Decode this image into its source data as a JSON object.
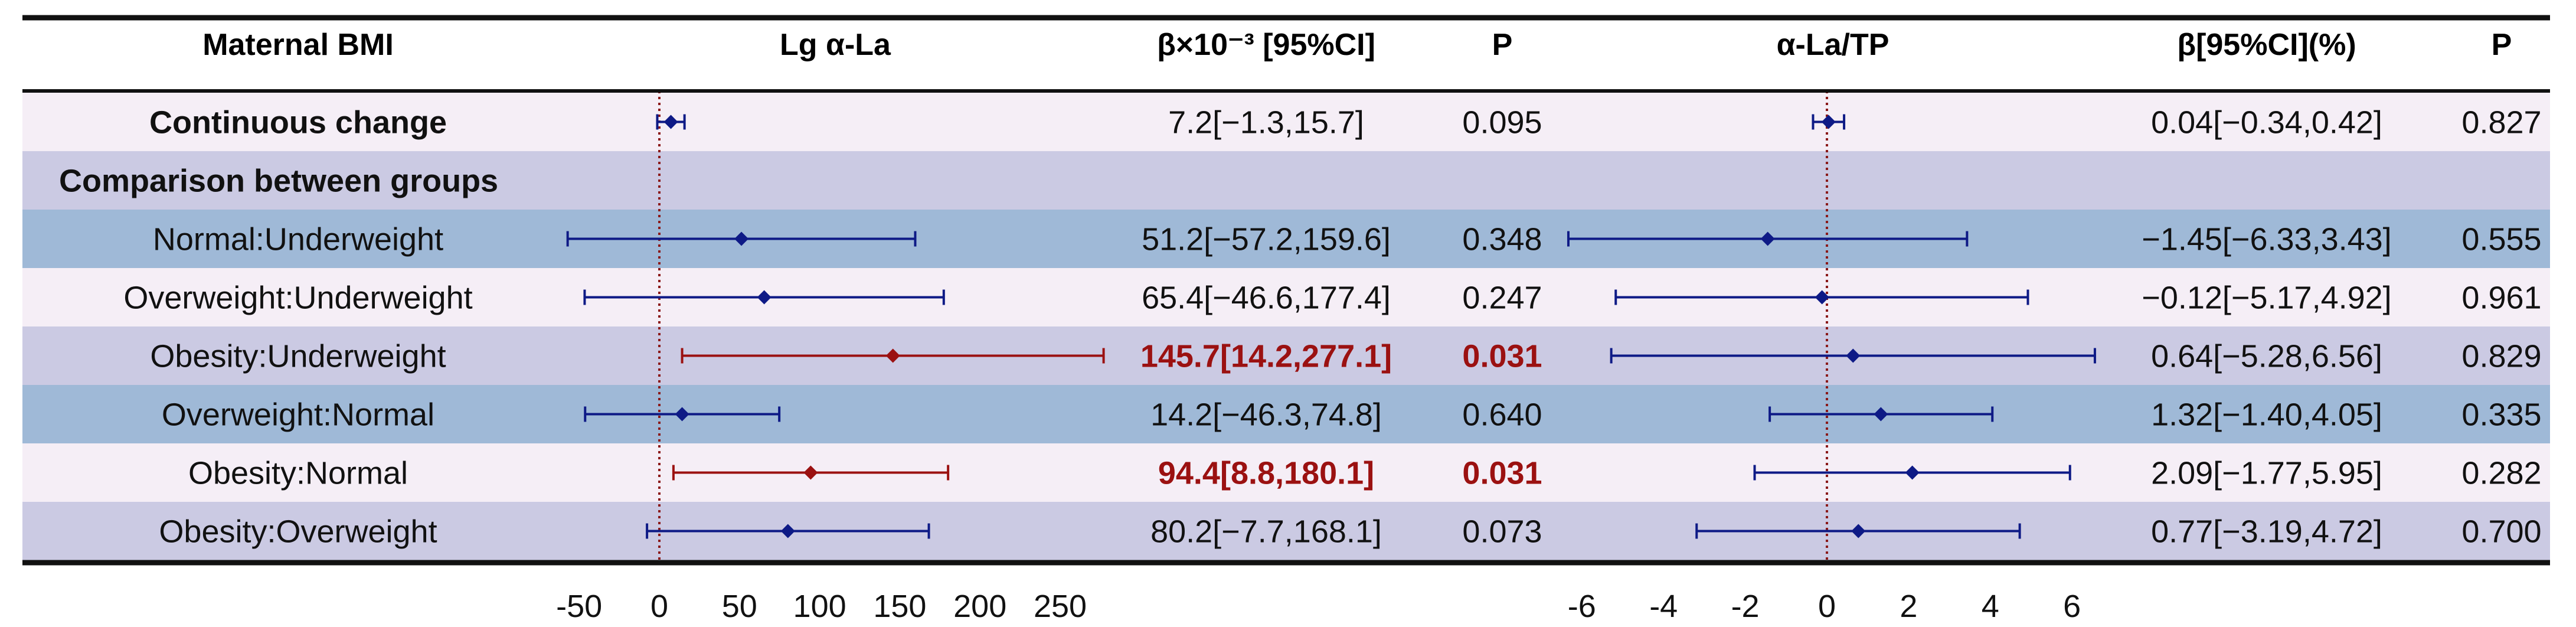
{
  "headers": {
    "group": "Maternal BMI",
    "left_plot": "Lg α-La",
    "left_ci": "β×10⁻³ [95%CI]",
    "left_p": "P",
    "right_plot": "α-La/TP",
    "right_ci": "β[95%CI](%)",
    "right_p": "P"
  },
  "colors": {
    "row_light": "#f5eef6",
    "row_mid": "#cbcae3",
    "row_dark": "#9fb9d7",
    "estimate": "#0e1a86",
    "significant": "#9b1111",
    "reference_line": "#8b1a1a",
    "rule": "#111111",
    "text": "#111111"
  },
  "chart_data": [
    {
      "type": "forest",
      "ylabel": "Maternal BMI",
      "xlabel": "Lg α-La",
      "xlim": [
        -55,
        275
      ],
      "xticks": [
        -50,
        0,
        50,
        100,
        150,
        200,
        250
      ],
      "reference_value": 0,
      "rows": [
        {
          "label": "Continuous change",
          "kind": "bold",
          "est": 7.2,
          "lo": -1.3,
          "hi": 15.7,
          "ci_text": "7.2[−1.3,15.7]",
          "p": "0.095",
          "significant": false
        },
        {
          "label": "Comparison between groups",
          "kind": "section"
        },
        {
          "label": "Normal:Underweight",
          "kind": "normal",
          "est": 51.2,
          "lo": -57.2,
          "hi": 159.6,
          "ci_text": "51.2[−57.2,159.6]",
          "p": "0.348",
          "significant": false
        },
        {
          "label": "Overweight:Underweight",
          "kind": "normal",
          "est": 65.4,
          "lo": -46.6,
          "hi": 177.4,
          "ci_text": "65.4[−46.6,177.4]",
          "p": "0.247",
          "significant": false
        },
        {
          "label": "Obesity:Underweight",
          "kind": "normal",
          "est": 145.7,
          "lo": 14.2,
          "hi": 277.1,
          "ci_text": "145.7[14.2,277.1]",
          "p": "0.031",
          "significant": true
        },
        {
          "label": "Overweight:Normal",
          "kind": "normal",
          "est": 14.2,
          "lo": -46.3,
          "hi": 74.8,
          "ci_text": "14.2[−46.3,74.8]",
          "p": "0.640",
          "significant": false
        },
        {
          "label": "Obesity:Normal",
          "kind": "normal",
          "est": 94.4,
          "lo": 8.8,
          "hi": 180.1,
          "ci_text": "94.4[8.8,180.1]",
          "p": "0.031",
          "significant": true
        },
        {
          "label": "Obesity:Overweight",
          "kind": "normal",
          "est": 80.2,
          "lo": -7.7,
          "hi": 168.1,
          "ci_text": "80.2[−7.7,168.1]",
          "p": "0.073",
          "significant": false
        }
      ]
    },
    {
      "type": "forest",
      "xlabel": "α-La/TP",
      "xlim": [
        -6.4,
        6.6
      ],
      "xticks": [
        -6,
        -4,
        -2,
        0,
        2,
        4,
        6
      ],
      "reference_value": 0,
      "rows": [
        {
          "label": "Continuous change",
          "est": 0.04,
          "lo": -0.34,
          "hi": 0.42,
          "ci_text": "0.04[−0.34,0.42]",
          "p": "0.827",
          "significant": false
        },
        {
          "label": "Comparison between groups",
          "kind": "section"
        },
        {
          "label": "Normal:Underweight",
          "est": -1.45,
          "lo": -6.33,
          "hi": 3.43,
          "ci_text": "−1.45[−6.33,3.43]",
          "p": "0.555",
          "significant": false
        },
        {
          "label": "Overweight:Underweight",
          "est": -0.12,
          "lo": -5.17,
          "hi": 4.92,
          "ci_text": "−0.12[−5.17,4.92]",
          "p": "0.961",
          "significant": false
        },
        {
          "label": "Obesity:Underweight",
          "est": 0.64,
          "lo": -5.28,
          "hi": 6.56,
          "ci_text": "0.64[−5.28,6.56]",
          "p": "0.829",
          "significant": false
        },
        {
          "label": "Overweight:Normal",
          "est": 1.32,
          "lo": -1.4,
          "hi": 4.05,
          "ci_text": "1.32[−1.40,4.05]",
          "p": "0.335",
          "significant": false
        },
        {
          "label": "Obesity:Normal",
          "est": 2.09,
          "lo": -1.77,
          "hi": 5.95,
          "ci_text": "2.09[−1.77,5.95]",
          "p": "0.282",
          "significant": false
        },
        {
          "label": "Obesity:Overweight",
          "est": 0.77,
          "lo": -3.19,
          "hi": 4.72,
          "ci_text": "0.77[−3.19,4.72]",
          "p": "0.700",
          "significant": false
        }
      ]
    }
  ]
}
